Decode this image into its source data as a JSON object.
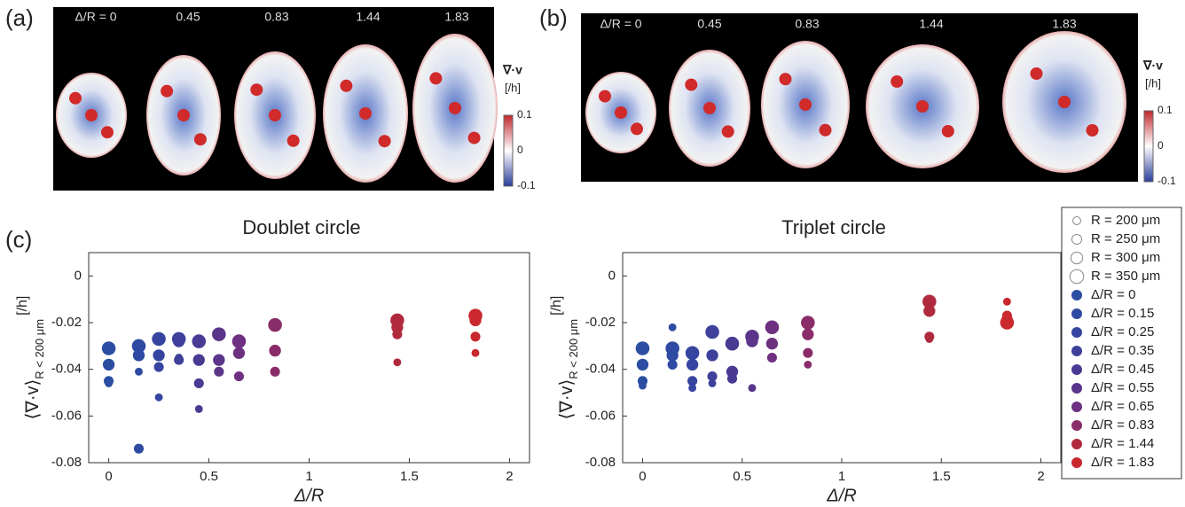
{
  "panels": {
    "a": {
      "label": "(a)",
      "delta_labels": [
        "Δ/R = 0",
        "0.45",
        "0.83",
        "1.44",
        "1.83"
      ],
      "colorbar": {
        "title": "∇·v",
        "unit": "[/h]",
        "ticks": [
          "0.1",
          "0",
          "-0.1"
        ]
      }
    },
    "b": {
      "label": "(b)",
      "delta_labels": [
        "Δ/R = 0",
        "0.45",
        "0.83",
        "1.44",
        "1.83"
      ],
      "colorbar": {
        "title": "∇·v",
        "unit": "[/h]",
        "ticks": [
          "0.1",
          "0",
          "-0.1"
        ]
      }
    },
    "c": {
      "label": "(c)"
    }
  },
  "size_legend": [
    {
      "label": "R = 200 μm",
      "value": 200
    },
    {
      "label": "R = 250 μm",
      "value": 250
    },
    {
      "label": "R = 300 μm",
      "value": 300
    },
    {
      "label": "R = 350 μm",
      "value": 350
    }
  ],
  "chart_data": [
    {
      "type": "scatter",
      "title": "Doublet circle",
      "x_label": "Δ/R",
      "y_label": "⟨∇·v⟩",
      "y_label_sub": "R < 200 μm",
      "y_label_unit": "[/h]",
      "xlim": [
        -0.1,
        2.1
      ],
      "ylim": [
        -0.08,
        0.01
      ],
      "xticks": [
        0,
        0.5,
        1,
        1.5,
        2
      ],
      "yticks": [
        0,
        -0.02,
        -0.04,
        -0.06,
        -0.08
      ],
      "series": [
        {
          "name": "Δ/R = 0",
          "color": "#2b4ea2",
          "x": [
            0,
            0,
            0,
            0
          ],
          "values": [
            -0.031,
            -0.038,
            -0.045,
            -0.046
          ],
          "sizes": [
            350,
            300,
            250,
            200
          ]
        },
        {
          "name": "Δ/R = 0.15",
          "color": "#2f4aa2",
          "x": [
            0.15,
            0.15,
            0.15,
            0.15
          ],
          "values": [
            -0.03,
            -0.034,
            -0.074,
            -0.041
          ],
          "sizes": [
            350,
            300,
            250,
            200
          ]
        },
        {
          "name": "Δ/R = 0.25",
          "color": "#36459f",
          "x": [
            0.25,
            0.25,
            0.25,
            0.25
          ],
          "values": [
            -0.027,
            -0.034,
            -0.039,
            -0.052
          ],
          "sizes": [
            350,
            300,
            250,
            200
          ]
        },
        {
          "name": "Δ/R = 0.35",
          "color": "#3e409b",
          "x": [
            0.35,
            0.35,
            0.35,
            0.35
          ],
          "values": [
            -0.027,
            -0.028,
            -0.036,
            -0.035
          ],
          "sizes": [
            350,
            300,
            250,
            200
          ]
        },
        {
          "name": "Δ/R = 0.45",
          "color": "#4a3a94",
          "x": [
            0.45,
            0.45,
            0.45,
            0.45
          ],
          "values": [
            -0.028,
            -0.036,
            -0.046,
            -0.057
          ],
          "sizes": [
            350,
            300,
            250,
            200
          ]
        },
        {
          "name": "Δ/R = 0.55",
          "color": "#5a358a",
          "x": [
            0.55,
            0.55,
            0.55
          ],
          "values": [
            -0.025,
            -0.036,
            -0.041
          ],
          "sizes": [
            350,
            300,
            250
          ]
        },
        {
          "name": "Δ/R = 0.65",
          "color": "#6e3080",
          "x": [
            0.65,
            0.65,
            0.65
          ],
          "values": [
            -0.028,
            -0.033,
            -0.043
          ],
          "sizes": [
            350,
            300,
            250
          ]
        },
        {
          "name": "Δ/R = 0.83",
          "color": "#8a2c6a",
          "x": [
            0.83,
            0.83,
            0.83
          ],
          "values": [
            -0.021,
            -0.032,
            -0.041
          ],
          "sizes": [
            350,
            300,
            250
          ]
        },
        {
          "name": "Δ/R = 1.44",
          "color": "#b02a3e",
          "x": [
            1.44,
            1.44,
            1.44,
            1.44
          ],
          "values": [
            -0.019,
            -0.022,
            -0.025,
            -0.037
          ],
          "sizes": [
            350,
            300,
            250,
            200
          ]
        },
        {
          "name": "Δ/R = 1.83",
          "color": "#c8282e",
          "x": [
            1.83,
            1.83,
            1.83,
            1.83
          ],
          "values": [
            -0.017,
            -0.019,
            -0.026,
            -0.033
          ],
          "sizes": [
            350,
            300,
            250,
            200
          ]
        }
      ]
    },
    {
      "type": "scatter",
      "title": "Triplet circle",
      "x_label": "Δ/R",
      "y_label": "⟨∇·v⟩",
      "y_label_sub": "R < 200 μm",
      "y_label_unit": "[/h]",
      "xlim": [
        -0.1,
        2.1
      ],
      "ylim": [
        -0.08,
        0.01
      ],
      "xticks": [
        0,
        0.5,
        1,
        1.5,
        2
      ],
      "yticks": [
        0,
        -0.02,
        -0.04,
        -0.06,
        -0.08
      ],
      "series": [
        {
          "name": "Δ/R = 0",
          "color": "#2b4ea2",
          "x": [
            0,
            0,
            0,
            0
          ],
          "values": [
            -0.031,
            -0.038,
            -0.045,
            -0.047
          ],
          "sizes": [
            350,
            300,
            250,
            200
          ]
        },
        {
          "name": "Δ/R = 0.15",
          "color": "#2f4aa2",
          "x": [
            0.15,
            0.15,
            0.15,
            0.15
          ],
          "values": [
            -0.031,
            -0.034,
            -0.038,
            -0.022
          ],
          "sizes": [
            350,
            300,
            250,
            200
          ]
        },
        {
          "name": "Δ/R = 0.25",
          "color": "#36459f",
          "x": [
            0.25,
            0.25,
            0.25,
            0.25
          ],
          "values": [
            -0.033,
            -0.038,
            -0.045,
            -0.048
          ],
          "sizes": [
            350,
            300,
            250,
            200
          ]
        },
        {
          "name": "Δ/R = 0.35",
          "color": "#3e409b",
          "x": [
            0.35,
            0.35,
            0.35,
            0.35
          ],
          "values": [
            -0.024,
            -0.034,
            -0.043,
            -0.046
          ],
          "sizes": [
            350,
            300,
            250,
            200
          ]
        },
        {
          "name": "Δ/R = 0.45",
          "color": "#4a3a94",
          "x": [
            0.45,
            0.45,
            0.45
          ],
          "values": [
            -0.029,
            -0.041,
            -0.044
          ],
          "sizes": [
            350,
            300,
            250
          ]
        },
        {
          "name": "Δ/R = 0.55",
          "color": "#5a358a",
          "x": [
            0.55,
            0.55,
            0.55
          ],
          "values": [
            -0.026,
            -0.028,
            -0.048
          ],
          "sizes": [
            350,
            300,
            200
          ]
        },
        {
          "name": "Δ/R = 0.65",
          "color": "#6e3080",
          "x": [
            0.65,
            0.65,
            0.65
          ],
          "values": [
            -0.022,
            -0.029,
            -0.035
          ],
          "sizes": [
            350,
            300,
            250
          ]
        },
        {
          "name": "Δ/R = 0.83",
          "color": "#8a2c6a",
          "x": [
            0.83,
            0.83,
            0.83,
            0.83
          ],
          "values": [
            -0.02,
            -0.025,
            -0.033,
            -0.038
          ],
          "sizes": [
            350,
            300,
            250,
            200
          ]
        },
        {
          "name": "Δ/R = 1.44",
          "color": "#b02a3e",
          "x": [
            1.44,
            1.44,
            1.44,
            1.44
          ],
          "values": [
            -0.011,
            -0.015,
            -0.026,
            -0.027
          ],
          "sizes": [
            350,
            300,
            250,
            200
          ]
        },
        {
          "name": "Δ/R = 1.83",
          "color": "#c8282e",
          "x": [
            1.83,
            1.83,
            1.83,
            1.83
          ],
          "values": [
            -0.011,
            -0.017,
            -0.019,
            -0.02
          ],
          "sizes": [
            200,
            250,
            300,
            350
          ]
        }
      ]
    }
  ]
}
